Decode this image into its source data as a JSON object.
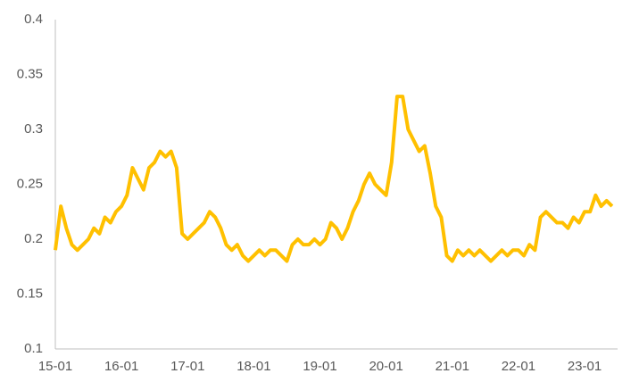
{
  "chart_data": {
    "type": "line",
    "x": [
      "15-01",
      "15-02",
      "15-03",
      "15-04",
      "15-05",
      "15-06",
      "15-07",
      "15-08",
      "15-09",
      "15-10",
      "15-11",
      "15-12",
      "16-01",
      "16-02",
      "16-03",
      "16-04",
      "16-05",
      "16-06",
      "16-07",
      "16-08",
      "16-09",
      "16-10",
      "16-11",
      "16-12",
      "17-01",
      "17-02",
      "17-03",
      "17-04",
      "17-05",
      "17-06",
      "17-07",
      "17-08",
      "17-09",
      "17-10",
      "17-11",
      "17-12",
      "18-01",
      "18-02",
      "18-03",
      "18-04",
      "18-05",
      "18-06",
      "18-07",
      "18-08",
      "18-09",
      "18-10",
      "18-11",
      "18-12",
      "19-01",
      "19-02",
      "19-03",
      "19-04",
      "19-05",
      "19-06",
      "19-07",
      "19-08",
      "19-09",
      "19-10",
      "19-11",
      "19-12",
      "20-01",
      "20-02",
      "20-03",
      "20-04",
      "20-05",
      "20-06",
      "20-07",
      "20-08",
      "20-09",
      "20-10",
      "20-11",
      "20-12",
      "21-01",
      "21-02",
      "21-03",
      "21-04",
      "21-05",
      "21-06",
      "21-07",
      "21-08",
      "21-09",
      "21-10",
      "21-11",
      "21-12",
      "22-01",
      "22-02",
      "22-03",
      "22-04",
      "22-05",
      "22-06",
      "22-07",
      "22-08",
      "22-09",
      "22-10",
      "22-11",
      "22-12",
      "23-01",
      "23-02",
      "23-03",
      "23-04",
      "23-05",
      "23-06"
    ],
    "xticks": [
      "15-01",
      "16-01",
      "17-01",
      "18-01",
      "19-01",
      "20-01",
      "21-01",
      "22-01",
      "23-01"
    ],
    "series": [
      {
        "color": "#FFC000",
        "values": [
          0.19,
          0.23,
          0.21,
          0.195,
          0.19,
          0.195,
          0.2,
          0.21,
          0.205,
          0.22,
          0.215,
          0.225,
          0.23,
          0.24,
          0.265,
          0.255,
          0.245,
          0.265,
          0.27,
          0.28,
          0.275,
          0.28,
          0.265,
          0.205,
          0.2,
          0.205,
          0.21,
          0.215,
          0.225,
          0.22,
          0.21,
          0.195,
          0.19,
          0.195,
          0.185,
          0.18,
          0.185,
          0.19,
          0.185,
          0.19,
          0.19,
          0.185,
          0.18,
          0.195,
          0.2,
          0.195,
          0.195,
          0.2,
          0.195,
          0.2,
          0.215,
          0.21,
          0.2,
          0.21,
          0.225,
          0.235,
          0.25,
          0.26,
          0.25,
          0.245,
          0.24,
          0.27,
          0.33,
          0.33,
          0.3,
          0.29,
          0.28,
          0.285,
          0.26,
          0.23,
          0.22,
          0.185,
          0.18,
          0.19,
          0.185,
          0.19,
          0.185,
          0.19,
          0.185,
          0.18,
          0.185,
          0.19,
          0.185,
          0.19,
          0.19,
          0.185,
          0.195,
          0.19,
          0.22,
          0.225,
          0.22,
          0.215,
          0.215,
          0.21,
          0.22,
          0.215,
          0.225,
          0.225,
          0.24,
          0.23,
          0.235,
          0.23
        ]
      }
    ],
    "ylim": [
      0.1,
      0.4
    ],
    "yticks": [
      0.1,
      0.15,
      0.2,
      0.25,
      0.3,
      0.35,
      0.4
    ],
    "grid": false
  }
}
